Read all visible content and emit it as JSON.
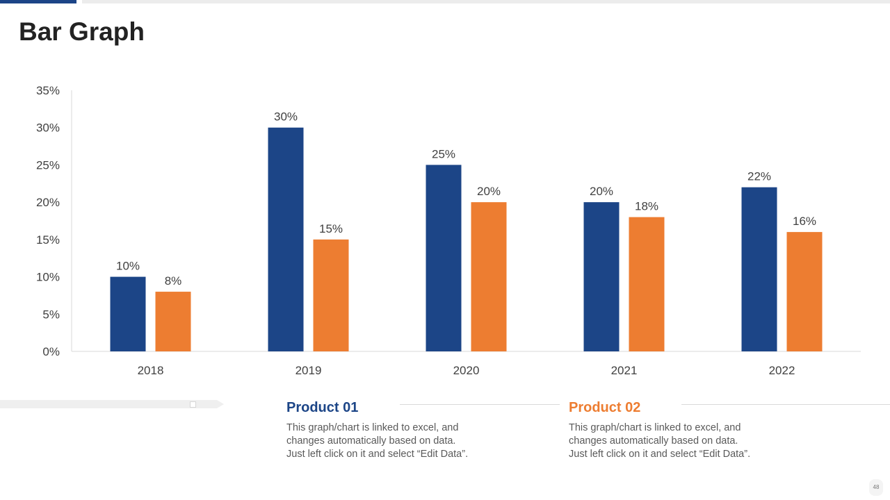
{
  "slide": {
    "title": "Bar Graph",
    "page_number": "48"
  },
  "colors": {
    "product01": "#1c4587",
    "product02": "#ed7d31",
    "axis": "#d9d9d9",
    "text": "#404040"
  },
  "products": [
    {
      "title": "Product 01",
      "desc": [
        "This graph/chart  is linked to excel, and",
        "changes automatically based on data.",
        "Just left click on it and select “Edit Data”."
      ]
    },
    {
      "title": "Product 02",
      "desc": [
        "This graph/chart  is linked to excel, and",
        "changes automatically based on data.",
        "Just left click on it and select “Edit Data”."
      ]
    }
  ],
  "chart_data": {
    "type": "bar",
    "title": "",
    "xlabel": "",
    "ylabel": "",
    "categories": [
      "2018",
      "2019",
      "2020",
      "2021",
      "2022"
    ],
    "series": [
      {
        "name": "Product 01",
        "values": [
          10,
          30,
          25,
          20,
          22
        ]
      },
      {
        "name": "Product 02",
        "values": [
          8,
          15,
          20,
          18,
          16
        ]
      }
    ],
    "ylim": [
      0,
      35
    ],
    "yticks": [
      0,
      5,
      10,
      15,
      20,
      25,
      30,
      35
    ],
    "value_suffix": "%",
    "grid": false,
    "legend": "below chart"
  }
}
